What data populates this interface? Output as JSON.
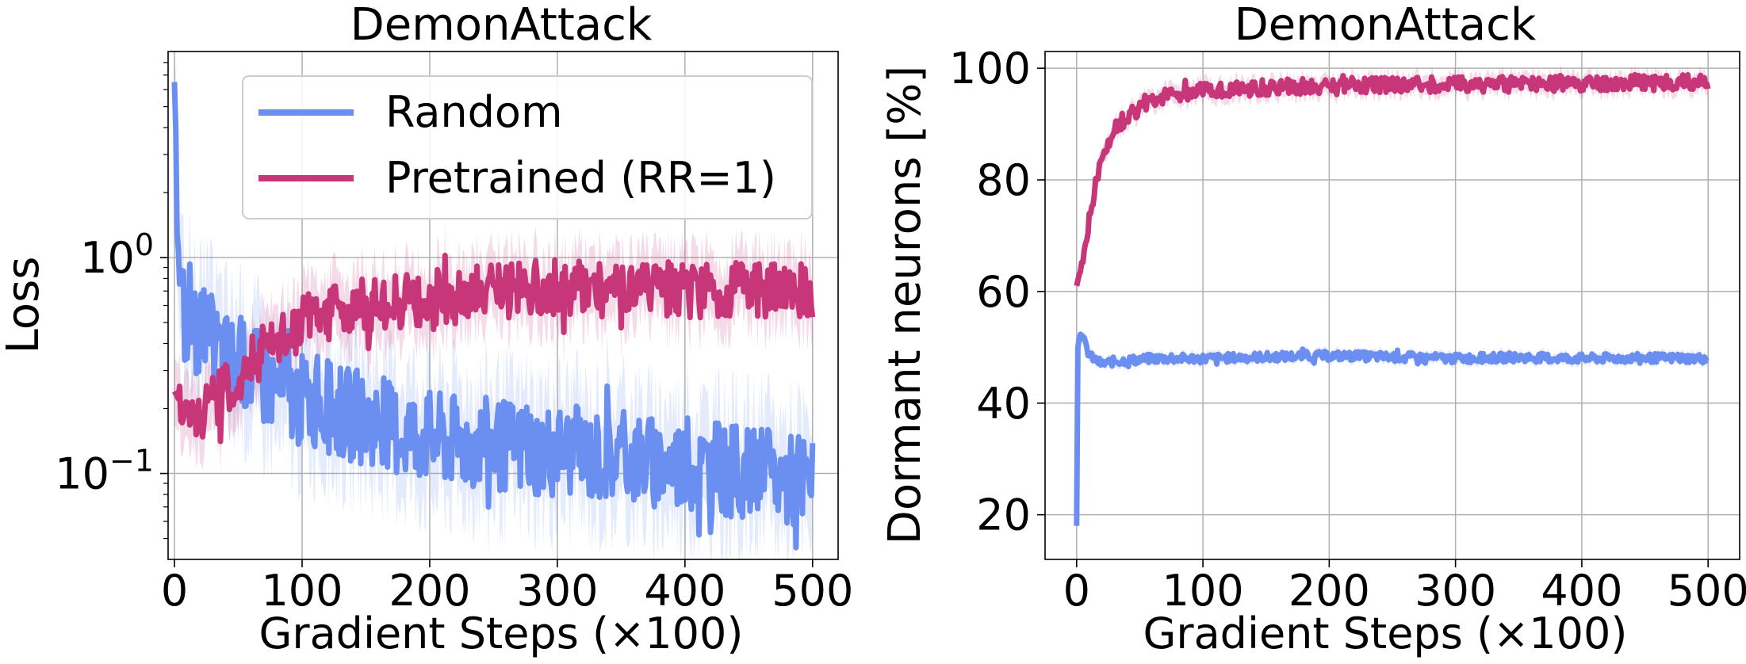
{
  "chart_data": [
    {
      "type": "line",
      "title": "DemonAttack",
      "xlabel": "Gradient Steps (×100)",
      "ylabel": "Loss",
      "yscale": "log",
      "xlim": [
        -5,
        520
      ],
      "ylim": [
        0.04,
        9
      ],
      "xticks": [
        0,
        100,
        200,
        300,
        400,
        500
      ],
      "xtick_labels": [
        "0",
        "100",
        "200",
        "300",
        "400",
        "500"
      ],
      "yticks": [
        1,
        0.1
      ],
      "ytick_labels": [
        {
          "base": "10",
          "exp": "0"
        },
        {
          "base": "10",
          "exp": "−1"
        }
      ],
      "grid": true,
      "legend": {
        "placement": "top-right",
        "entries": [
          "Random",
          "Pretrained (RR=1)"
        ]
      },
      "series": [
        {
          "name": "Random",
          "color": "#6b8ff0",
          "x": [
            0,
            2,
            5,
            8,
            12,
            20,
            30,
            40,
            60,
            80,
            100,
            125,
            150,
            175,
            200,
            225,
            250,
            275,
            300,
            325,
            350,
            375,
            400,
            425,
            450,
            475,
            500
          ],
          "y": [
            6.5,
            1.3,
            0.7,
            0.52,
            0.48,
            0.45,
            0.4,
            0.35,
            0.3,
            0.25,
            0.22,
            0.2,
            0.18,
            0.16,
            0.15,
            0.14,
            0.14,
            0.13,
            0.13,
            0.12,
            0.12,
            0.115,
            0.11,
            0.105,
            0.1,
            0.095,
            0.09
          ],
          "noise": 0.22
        },
        {
          "name": "Pretrained (RR=1)",
          "color": "#c8367a",
          "x": [
            0,
            10,
            20,
            40,
            60,
            80,
            100,
            125,
            150,
            175,
            200,
            225,
            250,
            275,
            300,
            325,
            350,
            375,
            400,
            425,
            450,
            475,
            500
          ],
          "y": [
            0.24,
            0.18,
            0.19,
            0.24,
            0.32,
            0.42,
            0.5,
            0.55,
            0.6,
            0.63,
            0.65,
            0.67,
            0.7,
            0.72,
            0.73,
            0.73,
            0.72,
            0.7,
            0.7,
            0.7,
            0.72,
            0.7,
            0.7
          ],
          "noise": 0.13
        }
      ]
    },
    {
      "type": "line",
      "title": "DemonAttack",
      "xlabel": "Gradient Steps (×100)",
      "ylabel": "Dormant neurons [%]",
      "yscale": "linear",
      "xlim": [
        -25,
        525
      ],
      "ylim": [
        12,
        103
      ],
      "xticks": [
        0,
        100,
        200,
        300,
        400,
        500
      ],
      "xtick_labels": [
        "0",
        "100",
        "200",
        "300",
        "400",
        "500"
      ],
      "yticks": [
        20,
        40,
        60,
        80,
        100
      ],
      "ytick_labels": [
        "20",
        "40",
        "60",
        "80",
        "100"
      ],
      "grid": true,
      "series": [
        {
          "name": "Pretrained (RR=1)",
          "color": "#c8367a",
          "x": [
            0,
            5,
            10,
            15,
            20,
            30,
            40,
            50,
            60,
            80,
            100,
            150,
            200,
            250,
            300,
            350,
            400,
            450,
            500
          ],
          "y": [
            61,
            66,
            73,
            79,
            84,
            89,
            91.5,
            93,
            94.5,
            95.5,
            96,
            96.5,
            97,
            97,
            97,
            97.2,
            97.3,
            97.5,
            97.5
          ],
          "noise": 0.8
        },
        {
          "name": "Random",
          "color": "#6b8ff0",
          "x": [
            0,
            1,
            3,
            6,
            10,
            20,
            30,
            60,
            100,
            150,
            200,
            250,
            300,
            350,
            400,
            450,
            500
          ],
          "y": [
            18,
            50,
            53,
            51,
            48.5,
            47,
            47.5,
            48,
            48,
            48.3,
            48.5,
            48.3,
            48,
            48.2,
            48,
            48.1,
            48
          ],
          "noise": 0.45
        }
      ]
    }
  ]
}
